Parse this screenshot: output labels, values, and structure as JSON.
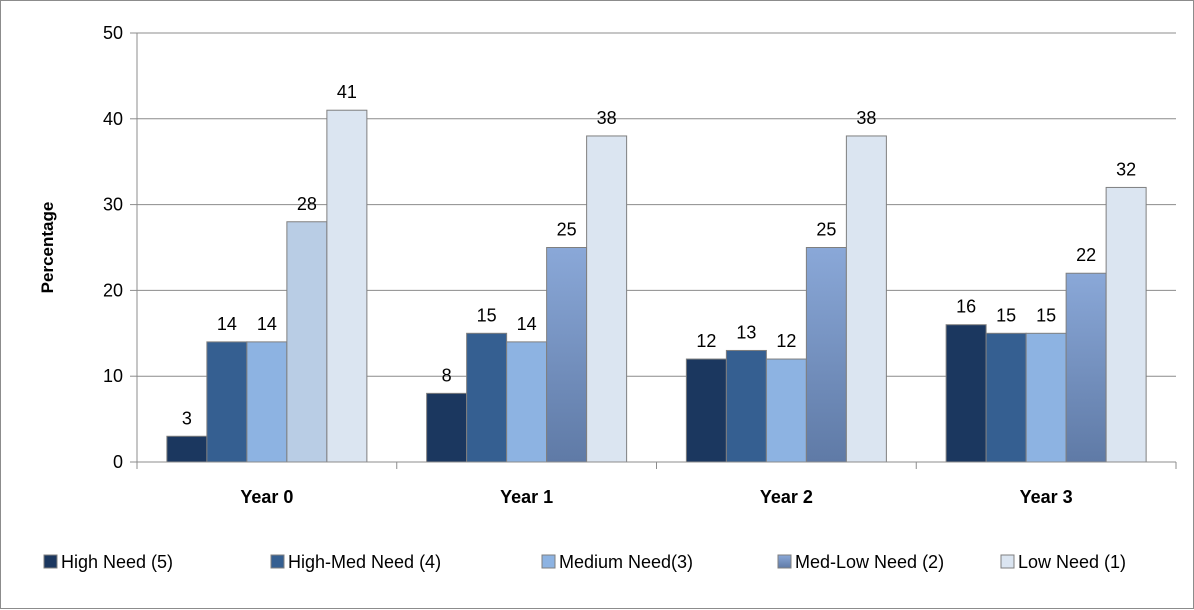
{
  "chart_data": {
    "type": "bar",
    "title": "",
    "xlabel": "",
    "ylabel": "Percentage",
    "ylim": [
      0,
      50
    ],
    "yticks": [
      0,
      10,
      20,
      30,
      40,
      50
    ],
    "grid": true,
    "legend_position": "bottom",
    "categories": [
      "Year 0",
      "Year 1",
      "Year 2",
      "Year 3"
    ],
    "series": [
      {
        "name": "High Need (5)",
        "values": [
          3,
          8,
          12,
          16
        ],
        "color": "#1b375f",
        "gradient": false
      },
      {
        "name": "High-Med Need (4)",
        "values": [
          14,
          15,
          13,
          15
        ],
        "color": "#355f91",
        "gradient": false
      },
      {
        "name": "Medium Need(3)",
        "values": [
          14,
          14,
          12,
          15
        ],
        "color": "#8db3e2",
        "gradient": false
      },
      {
        "name": "Med-Low Need (2)",
        "values": [
          28,
          25,
          25,
          22
        ],
        "color": "#8aa8d8",
        "color_bottom": "#5f7aa6",
        "gradient": true
      },
      {
        "name": "Low Need (1)",
        "values": [
          41,
          38,
          38,
          32
        ],
        "color": "#dbe5f1",
        "gradient": false
      }
    ],
    "special_colors": {
      "Med-Low Need (2)": {
        "Year 0": "#b9cde5"
      }
    }
  }
}
